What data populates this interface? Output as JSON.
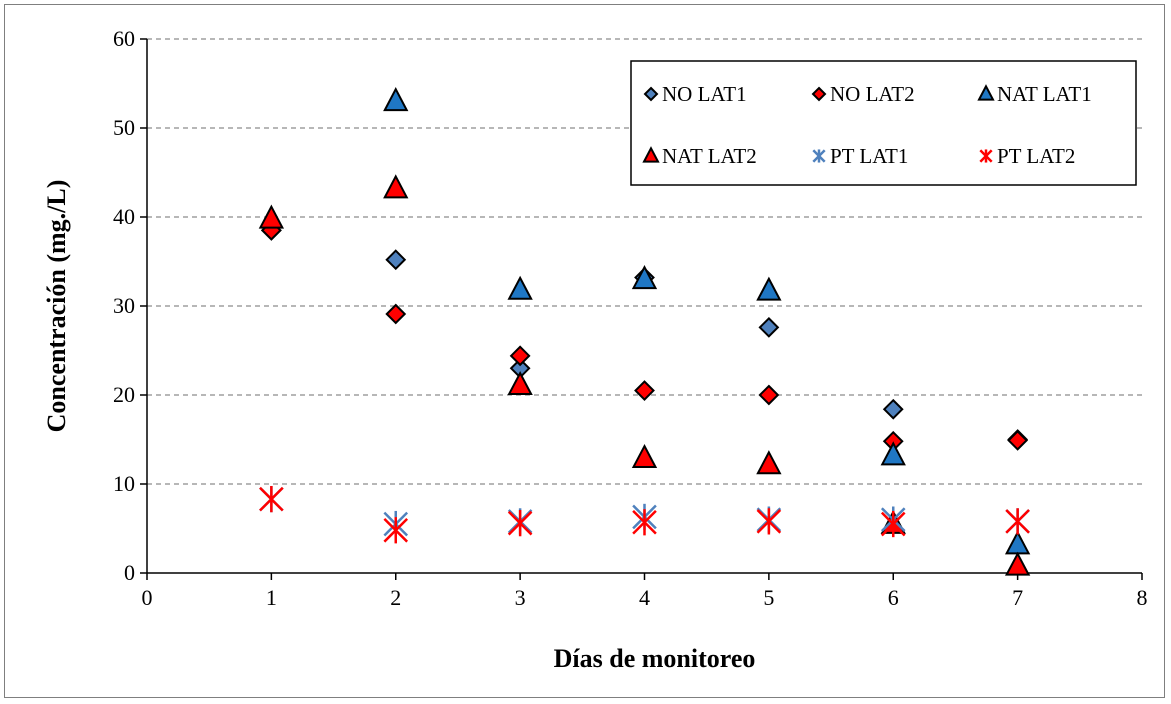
{
  "chart_data": {
    "type": "scatter",
    "title": "",
    "xlabel": "Días de monitoreo",
    "ylabel": "Concentración  (mg./L)",
    "xlim": [
      0,
      8
    ],
    "ylim": [
      0,
      60
    ],
    "xticks": [
      "0",
      "1",
      "2",
      "3",
      "4",
      "5",
      "6",
      "7",
      "8"
    ],
    "yticks": [
      "0",
      "10",
      "20",
      "30",
      "40",
      "50",
      "60"
    ],
    "grid": "horizontal dashed",
    "legend_position": "top-right",
    "series": [
      {
        "name": "NO LAT1",
        "marker": "diamond",
        "color": "#4f81bd",
        "points": [
          [
            1,
            38.5
          ],
          [
            2,
            35.2
          ],
          [
            3,
            23.0
          ],
          [
            4,
            33.2
          ],
          [
            5,
            27.6
          ],
          [
            6,
            18.4
          ],
          [
            7,
            15.0
          ]
        ]
      },
      {
        "name": "NO LAT2",
        "marker": "diamond",
        "color": "#ff0000",
        "points": [
          [
            1,
            38.5
          ],
          [
            2,
            29.1
          ],
          [
            3,
            24.4
          ],
          [
            4,
            20.5
          ],
          [
            5,
            20.0
          ],
          [
            6,
            14.8
          ],
          [
            7,
            14.9
          ]
        ]
      },
      {
        "name": "NAT LAT1",
        "marker": "triangle",
        "color": "#1f77c4",
        "points": [
          [
            2,
            53.0
          ],
          [
            3,
            31.8
          ],
          [
            4,
            33.0
          ],
          [
            5,
            31.7
          ],
          [
            6,
            13.2
          ],
          [
            7,
            3.2
          ]
        ]
      },
      {
        "name": "NAT LAT2",
        "marker": "triangle",
        "color": "#ff0000",
        "points": [
          [
            1,
            39.8
          ],
          [
            2,
            43.2
          ],
          [
            3,
            21.1
          ],
          [
            4,
            12.9
          ],
          [
            5,
            12.2
          ],
          [
            6,
            5.5
          ],
          [
            7,
            0.8
          ]
        ]
      },
      {
        "name": "PT LAT1",
        "marker": "star",
        "color": "#4f81bd",
        "points": [
          [
            1,
            8.3
          ],
          [
            2,
            5.5
          ],
          [
            3,
            5.8
          ],
          [
            4,
            6.3
          ],
          [
            5,
            6.0
          ],
          [
            6,
            6.0
          ],
          [
            7,
            5.8
          ]
        ]
      },
      {
        "name": "PT LAT2",
        "marker": "star",
        "color": "#ff0000",
        "points": [
          [
            1,
            8.3
          ],
          [
            2,
            4.8
          ],
          [
            3,
            5.6
          ],
          [
            4,
            5.7
          ],
          [
            5,
            5.8
          ],
          [
            6,
            5.5
          ],
          [
            7,
            5.8
          ]
        ]
      }
    ]
  }
}
